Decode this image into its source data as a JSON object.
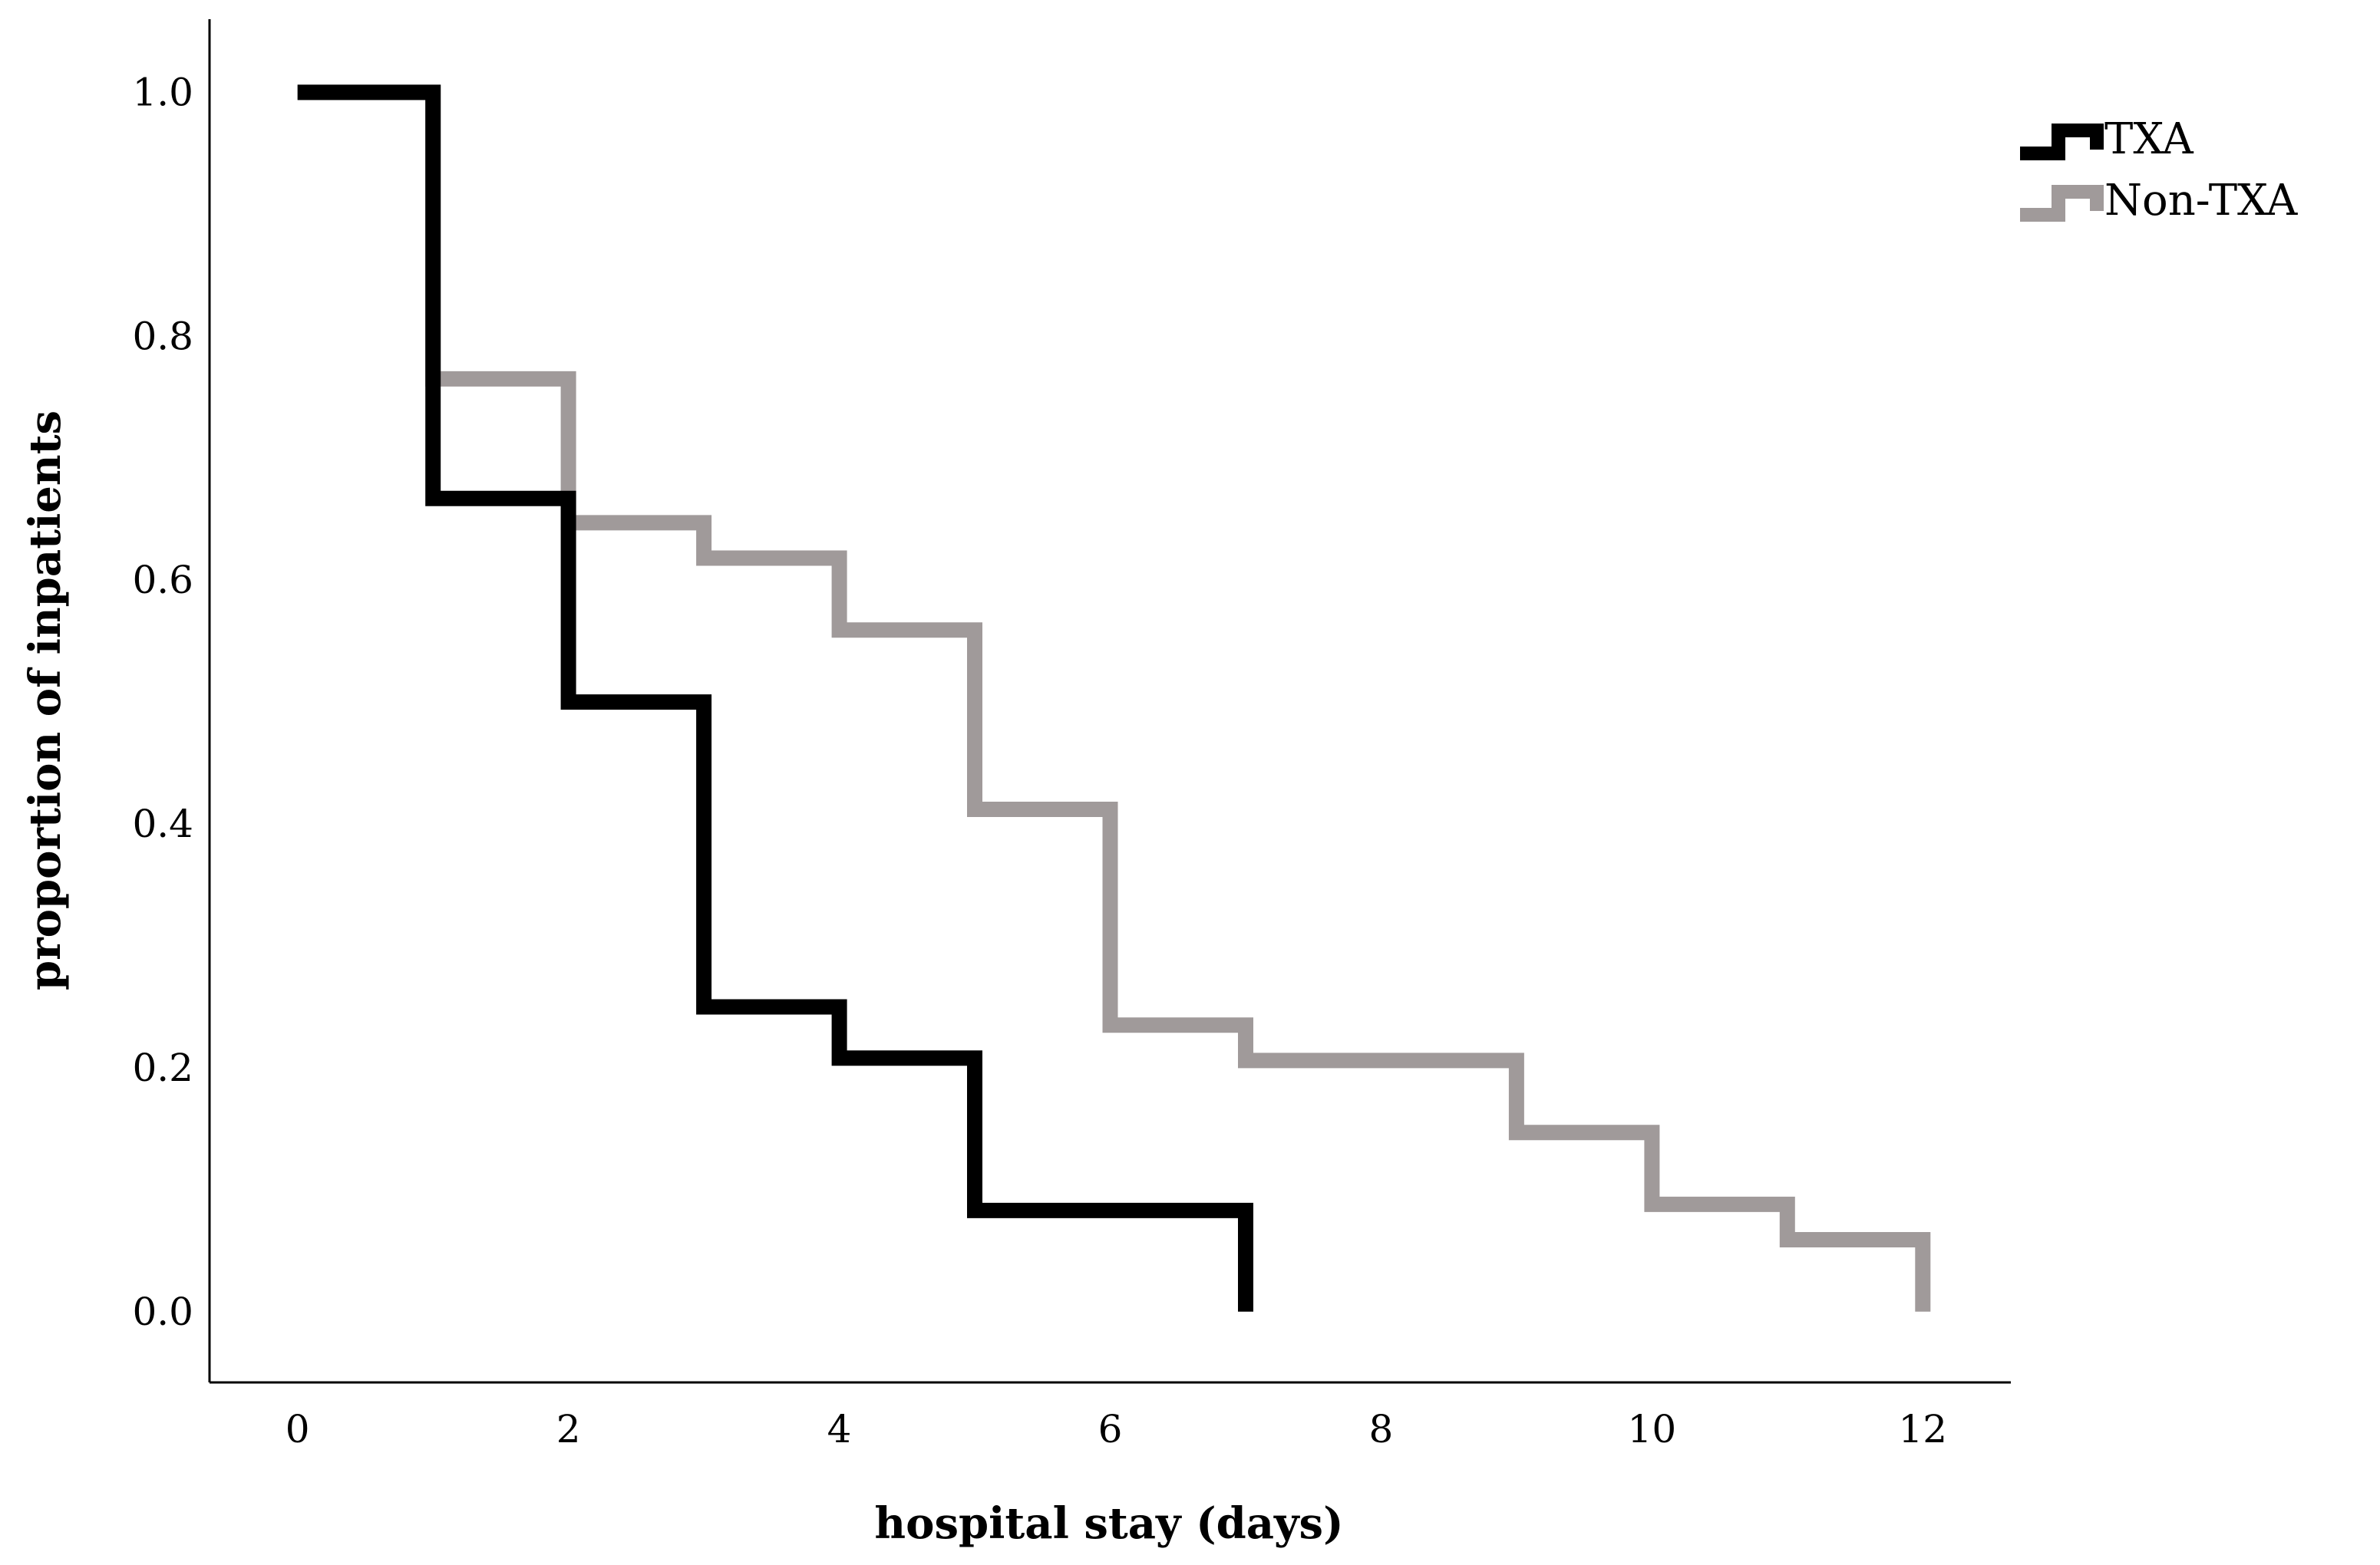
{
  "chart_data": {
    "type": "line",
    "step": true,
    "xlabel": "hospital stay (days)",
    "ylabel": "proportion of inpatients",
    "xlim": [
      -0.65,
      12.65
    ],
    "ylim": [
      -0.058,
      1.06
    ],
    "x_ticks": [
      0,
      2,
      4,
      6,
      8,
      10,
      12
    ],
    "y_ticks": [
      0.0,
      0.2,
      0.4,
      0.6,
      0.8,
      1.0
    ],
    "x_tick_labels": [
      "0",
      "2",
      "4",
      "6",
      "8",
      "10",
      "12"
    ],
    "y_tick_labels": [
      "0.0",
      "0.2",
      "0.4",
      "0.6",
      "0.8",
      "1.0"
    ],
    "grid": false,
    "legend_position": "top-right",
    "series": [
      {
        "name": "TXA",
        "color": "#000000",
        "points": [
          [
            0,
            1.0
          ],
          [
            1,
            1.0
          ],
          [
            1,
            0.667
          ],
          [
            2,
            0.667
          ],
          [
            2,
            0.5
          ],
          [
            3,
            0.5
          ],
          [
            3,
            0.25
          ],
          [
            4,
            0.25
          ],
          [
            4,
            0.208
          ],
          [
            5,
            0.208
          ],
          [
            5,
            0.083
          ],
          [
            7,
            0.083
          ],
          [
            7,
            0.0
          ]
        ]
      },
      {
        "name": "Non-TXA",
        "color": "#a09a9a",
        "points": [
          [
            0,
            1.0
          ],
          [
            1,
            1.0
          ],
          [
            1,
            0.765
          ],
          [
            2,
            0.765
          ],
          [
            2,
            0.647
          ],
          [
            3,
            0.647
          ],
          [
            3,
            0.618
          ],
          [
            4,
            0.618
          ],
          [
            4,
            0.559
          ],
          [
            5,
            0.559
          ],
          [
            5,
            0.412
          ],
          [
            6,
            0.412
          ],
          [
            6,
            0.235
          ],
          [
            7,
            0.235
          ],
          [
            7,
            0.206
          ],
          [
            9,
            0.206
          ],
          [
            9,
            0.147
          ],
          [
            10,
            0.147
          ],
          [
            10,
            0.088
          ],
          [
            11,
            0.088
          ],
          [
            11,
            0.059
          ],
          [
            12,
            0.059
          ],
          [
            12,
            0.0
          ]
        ]
      }
    ]
  }
}
